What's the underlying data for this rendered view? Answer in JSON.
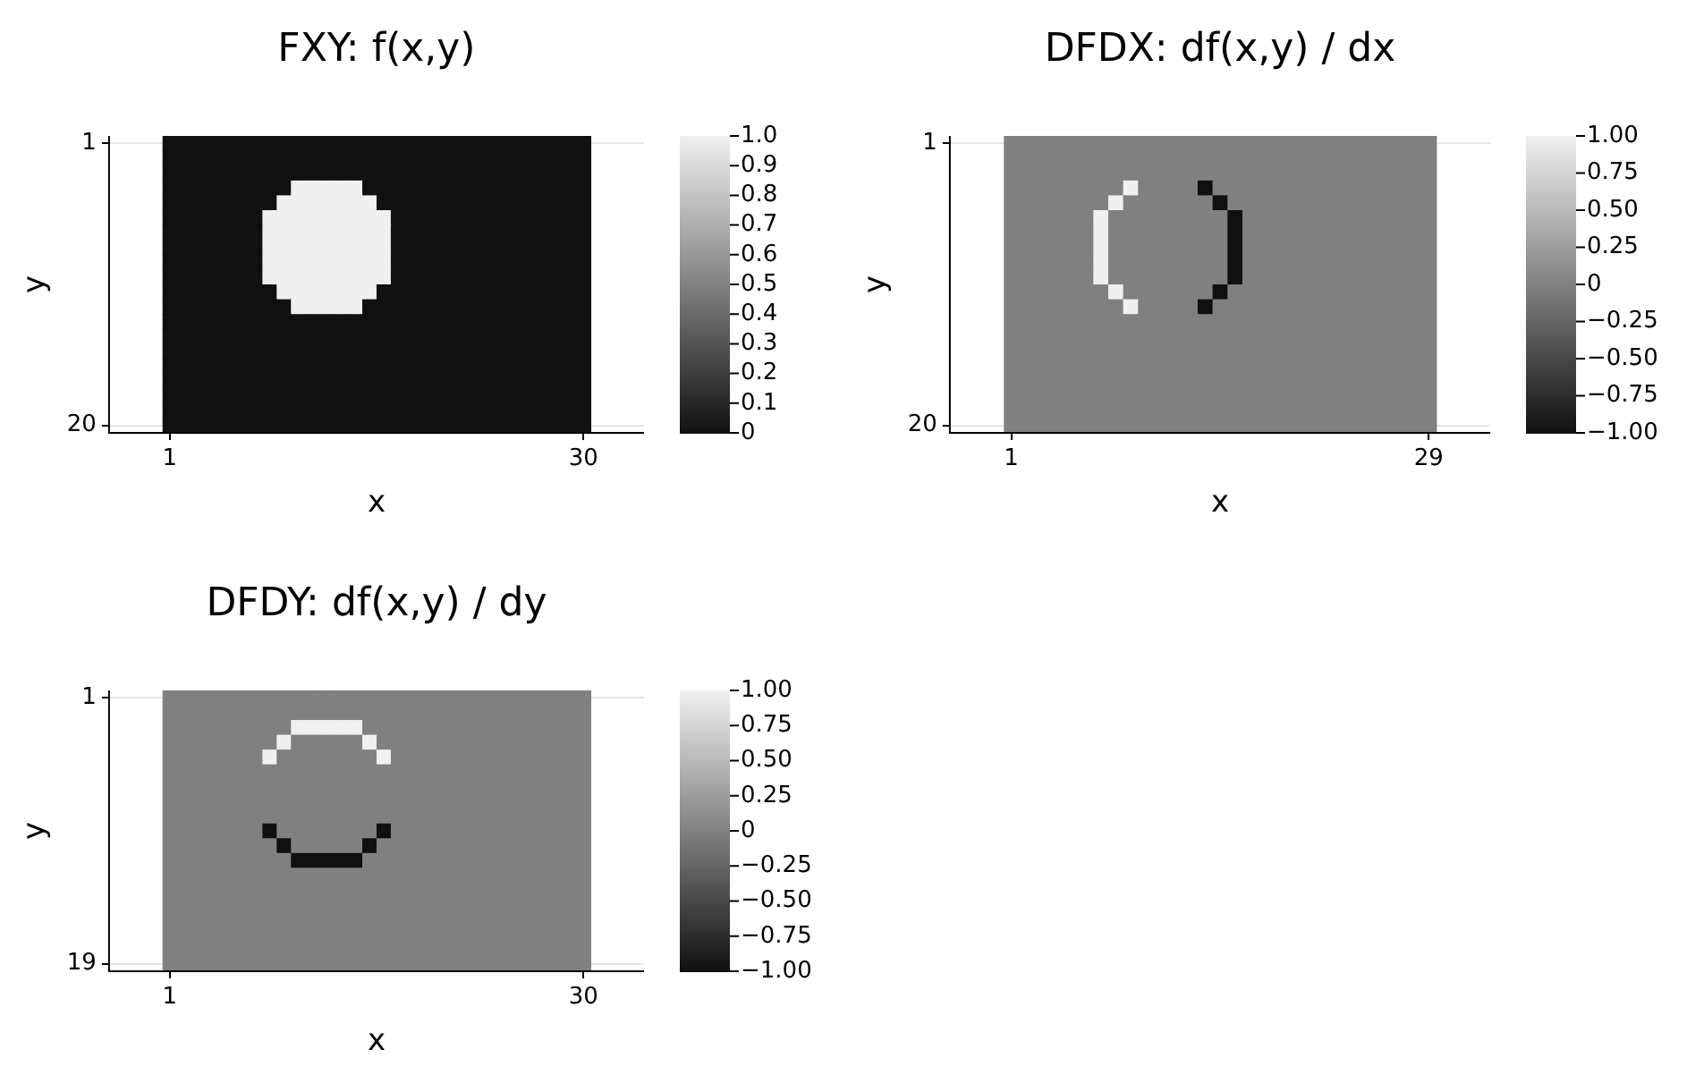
{
  "chart_data": [
    {
      "type": "heatmap",
      "title": "FXY: f(x,y)",
      "xlabel": "x",
      "ylabel": "y",
      "grid": true,
      "categories": [
        "1",
        null,
        null,
        null,
        null,
        null,
        null,
        null,
        null,
        null,
        null,
        null,
        null,
        null,
        null,
        null,
        null,
        null,
        null,
        null,
        null,
        null,
        null,
        null,
        null,
        null,
        null,
        null,
        null,
        "30"
      ],
      "y_categories": [
        "1",
        null,
        null,
        null,
        null,
        null,
        null,
        null,
        null,
        null,
        null,
        null,
        null,
        null,
        null,
        null,
        null,
        null,
        null,
        "20"
      ],
      "clim": [
        0,
        1
      ],
      "cticks": [
        0,
        0.1,
        0.2,
        0.3,
        0.4,
        0.5,
        0.6,
        0.7,
        0.8,
        0.9,
        {
          "value": 1,
          "label": "1.0"
        }
      ],
      "cells": [
        [
          0,
          0,
          0,
          0,
          0,
          0,
          0,
          0,
          0,
          0,
          0,
          0,
          0,
          0,
          0,
          0,
          0,
          0,
          0,
          0,
          0,
          0,
          0,
          0,
          0,
          0,
          0,
          0,
          0,
          0
        ],
        [
          0,
          0,
          0,
          0,
          0,
          0,
          0,
          0,
          0,
          0,
          0,
          0,
          0,
          0,
          0,
          0,
          0,
          0,
          0,
          0,
          0,
          0,
          0,
          0,
          0,
          0,
          0,
          0,
          0,
          0
        ],
        [
          0,
          0,
          0,
          0,
          0,
          0,
          0,
          0,
          0,
          0,
          0,
          0,
          0,
          0,
          0,
          0,
          0,
          0,
          0,
          0,
          0,
          0,
          0,
          0,
          0,
          0,
          0,
          0,
          0,
          0
        ],
        [
          0,
          0,
          0,
          0,
          0,
          0,
          0,
          0,
          0,
          1,
          1,
          1,
          1,
          1,
          0,
          0,
          0,
          0,
          0,
          0,
          0,
          0,
          0,
          0,
          0,
          0,
          0,
          0,
          0,
          0
        ],
        [
          0,
          0,
          0,
          0,
          0,
          0,
          0,
          0,
          1,
          1,
          1,
          1,
          1,
          1,
          1,
          0,
          0,
          0,
          0,
          0,
          0,
          0,
          0,
          0,
          0,
          0,
          0,
          0,
          0,
          0
        ],
        [
          0,
          0,
          0,
          0,
          0,
          0,
          0,
          1,
          1,
          1,
          1,
          1,
          1,
          1,
          1,
          1,
          0,
          0,
          0,
          0,
          0,
          0,
          0,
          0,
          0,
          0,
          0,
          0,
          0,
          0
        ],
        [
          0,
          0,
          0,
          0,
          0,
          0,
          0,
          1,
          1,
          1,
          1,
          1,
          1,
          1,
          1,
          1,
          0,
          0,
          0,
          0,
          0,
          0,
          0,
          0,
          0,
          0,
          0,
          0,
          0,
          0
        ],
        [
          0,
          0,
          0,
          0,
          0,
          0,
          0,
          1,
          1,
          1,
          1,
          1,
          1,
          1,
          1,
          1,
          0,
          0,
          0,
          0,
          0,
          0,
          0,
          0,
          0,
          0,
          0,
          0,
          0,
          0
        ],
        [
          0,
          0,
          0,
          0,
          0,
          0,
          0,
          1,
          1,
          1,
          1,
          1,
          1,
          1,
          1,
          1,
          0,
          0,
          0,
          0,
          0,
          0,
          0,
          0,
          0,
          0,
          0,
          0,
          0,
          0
        ],
        [
          0,
          0,
          0,
          0,
          0,
          0,
          0,
          1,
          1,
          1,
          1,
          1,
          1,
          1,
          1,
          1,
          0,
          0,
          0,
          0,
          0,
          0,
          0,
          0,
          0,
          0,
          0,
          0,
          0,
          0
        ],
        [
          0,
          0,
          0,
          0,
          0,
          0,
          0,
          0,
          1,
          1,
          1,
          1,
          1,
          1,
          1,
          0,
          0,
          0,
          0,
          0,
          0,
          0,
          0,
          0,
          0,
          0,
          0,
          0,
          0,
          0
        ],
        [
          0,
          0,
          0,
          0,
          0,
          0,
          0,
          0,
          0,
          1,
          1,
          1,
          1,
          1,
          0,
          0,
          0,
          0,
          0,
          0,
          0,
          0,
          0,
          0,
          0,
          0,
          0,
          0,
          0,
          0
        ],
        [
          0,
          0,
          0,
          0,
          0,
          0,
          0,
          0,
          0,
          0,
          0,
          0,
          0,
          0,
          0,
          0,
          0,
          0,
          0,
          0,
          0,
          0,
          0,
          0,
          0,
          0,
          0,
          0,
          0,
          0
        ],
        [
          0,
          0,
          0,
          0,
          0,
          0,
          0,
          0,
          0,
          0,
          0,
          0,
          0,
          0,
          0,
          0,
          0,
          0,
          0,
          0,
          0,
          0,
          0,
          0,
          0,
          0,
          0,
          0,
          0,
          0
        ],
        [
          0,
          0,
          0,
          0,
          0,
          0,
          0,
          0,
          0,
          0,
          0,
          0,
          0,
          0,
          0,
          0,
          0,
          0,
          0,
          0,
          0,
          0,
          0,
          0,
          0,
          0,
          0,
          0,
          0,
          0
        ],
        [
          0,
          0,
          0,
          0,
          0,
          0,
          0,
          0,
          0,
          0,
          0,
          0,
          0,
          0,
          0,
          0,
          0,
          0,
          0,
          0,
          0,
          0,
          0,
          0,
          0,
          0,
          0,
          0,
          0,
          0
        ],
        [
          0,
          0,
          0,
          0,
          0,
          0,
          0,
          0,
          0,
          0,
          0,
          0,
          0,
          0,
          0,
          0,
          0,
          0,
          0,
          0,
          0,
          0,
          0,
          0,
          0,
          0,
          0,
          0,
          0,
          0
        ],
        [
          0,
          0,
          0,
          0,
          0,
          0,
          0,
          0,
          0,
          0,
          0,
          0,
          0,
          0,
          0,
          0,
          0,
          0,
          0,
          0,
          0,
          0,
          0,
          0,
          0,
          0,
          0,
          0,
          0,
          0
        ],
        [
          0,
          0,
          0,
          0,
          0,
          0,
          0,
          0,
          0,
          0,
          0,
          0,
          0,
          0,
          0,
          0,
          0,
          0,
          0,
          0,
          0,
          0,
          0,
          0,
          0,
          0,
          0,
          0,
          0,
          0
        ],
        [
          0,
          0,
          0,
          0,
          0,
          0,
          0,
          0,
          0,
          0,
          0,
          0,
          0,
          0,
          0,
          0,
          0,
          0,
          0,
          0,
          0,
          0,
          0,
          0,
          0,
          0,
          0,
          0,
          0,
          0
        ]
      ]
    },
    {
      "type": "heatmap",
      "title": "DFDX: df(x,y) / dx",
      "xlabel": "x",
      "ylabel": "y",
      "grid": true,
      "categories": [
        "1",
        null,
        null,
        null,
        null,
        null,
        null,
        null,
        null,
        null,
        null,
        null,
        null,
        null,
        null,
        null,
        null,
        null,
        null,
        null,
        null,
        null,
        null,
        null,
        null,
        null,
        null,
        null,
        "29"
      ],
      "y_categories": [
        "1",
        null,
        null,
        null,
        null,
        null,
        null,
        null,
        null,
        null,
        null,
        null,
        null,
        null,
        null,
        null,
        null,
        null,
        null,
        "20"
      ],
      "clim": [
        -1,
        1
      ],
      "cticks": [
        {
          "value": -1,
          "label": "−1.00"
        },
        {
          "value": -0.75,
          "label": "−0.75"
        },
        {
          "value": -0.5,
          "label": "−0.50"
        },
        {
          "value": -0.25,
          "label": "−0.25"
        },
        0,
        {
          "value": 0.25,
          "label": "0.25"
        },
        {
          "value": 0.5,
          "label": "0.50"
        },
        {
          "value": 0.75,
          "label": "0.75"
        },
        {
          "value": 1,
          "label": "1.00"
        }
      ],
      "cells": [
        [
          0,
          0,
          0,
          0,
          0,
          0,
          0,
          0,
          0,
          0,
          0,
          0,
          0,
          0,
          0,
          0,
          0,
          0,
          0,
          0,
          0,
          0,
          0,
          0,
          0,
          0,
          0,
          0,
          0
        ],
        [
          0,
          0,
          0,
          0,
          0,
          0,
          0,
          0,
          0,
          0,
          0,
          0,
          0,
          0,
          0,
          0,
          0,
          0,
          0,
          0,
          0,
          0,
          0,
          0,
          0,
          0,
          0,
          0,
          0
        ],
        [
          0,
          0,
          0,
          0,
          0,
          0,
          0,
          0,
          0,
          0,
          0,
          0,
          0,
          0,
          0,
          0,
          0,
          0,
          0,
          0,
          0,
          0,
          0,
          0,
          0,
          0,
          0,
          0,
          0
        ],
        [
          0,
          0,
          0,
          0,
          0,
          0,
          0,
          0,
          1,
          0,
          0,
          0,
          0,
          -1,
          0,
          0,
          0,
          0,
          0,
          0,
          0,
          0,
          0,
          0,
          0,
          0,
          0,
          0,
          0
        ],
        [
          0,
          0,
          0,
          0,
          0,
          0,
          0,
          1,
          0,
          0,
          0,
          0,
          0,
          0,
          -1,
          0,
          0,
          0,
          0,
          0,
          0,
          0,
          0,
          0,
          0,
          0,
          0,
          0,
          0
        ],
        [
          0,
          0,
          0,
          0,
          0,
          0,
          1,
          0,
          0,
          0,
          0,
          0,
          0,
          0,
          0,
          -1,
          0,
          0,
          0,
          0,
          0,
          0,
          0,
          0,
          0,
          0,
          0,
          0,
          0
        ],
        [
          0,
          0,
          0,
          0,
          0,
          0,
          1,
          0,
          0,
          0,
          0,
          0,
          0,
          0,
          0,
          -1,
          0,
          0,
          0,
          0,
          0,
          0,
          0,
          0,
          0,
          0,
          0,
          0,
          0
        ],
        [
          0,
          0,
          0,
          0,
          0,
          0,
          1,
          0,
          0,
          0,
          0,
          0,
          0,
          0,
          0,
          -1,
          0,
          0,
          0,
          0,
          0,
          0,
          0,
          0,
          0,
          0,
          0,
          0,
          0
        ],
        [
          0,
          0,
          0,
          0,
          0,
          0,
          1,
          0,
          0,
          0,
          0,
          0,
          0,
          0,
          0,
          -1,
          0,
          0,
          0,
          0,
          0,
          0,
          0,
          0,
          0,
          0,
          0,
          0,
          0
        ],
        [
          0,
          0,
          0,
          0,
          0,
          0,
          1,
          0,
          0,
          0,
          0,
          0,
          0,
          0,
          0,
          -1,
          0,
          0,
          0,
          0,
          0,
          0,
          0,
          0,
          0,
          0,
          0,
          0,
          0
        ],
        [
          0,
          0,
          0,
          0,
          0,
          0,
          0,
          1,
          0,
          0,
          0,
          0,
          0,
          0,
          -1,
          0,
          0,
          0,
          0,
          0,
          0,
          0,
          0,
          0,
          0,
          0,
          0,
          0,
          0
        ],
        [
          0,
          0,
          0,
          0,
          0,
          0,
          0,
          0,
          1,
          0,
          0,
          0,
          0,
          -1,
          0,
          0,
          0,
          0,
          0,
          0,
          0,
          0,
          0,
          0,
          0,
          0,
          0,
          0,
          0
        ],
        [
          0,
          0,
          0,
          0,
          0,
          0,
          0,
          0,
          0,
          0,
          0,
          0,
          0,
          0,
          0,
          0,
          0,
          0,
          0,
          0,
          0,
          0,
          0,
          0,
          0,
          0,
          0,
          0,
          0
        ],
        [
          0,
          0,
          0,
          0,
          0,
          0,
          0,
          0,
          0,
          0,
          0,
          0,
          0,
          0,
          0,
          0,
          0,
          0,
          0,
          0,
          0,
          0,
          0,
          0,
          0,
          0,
          0,
          0,
          0
        ],
        [
          0,
          0,
          0,
          0,
          0,
          0,
          0,
          0,
          0,
          0,
          0,
          0,
          0,
          0,
          0,
          0,
          0,
          0,
          0,
          0,
          0,
          0,
          0,
          0,
          0,
          0,
          0,
          0,
          0
        ],
        [
          0,
          0,
          0,
          0,
          0,
          0,
          0,
          0,
          0,
          0,
          0,
          0,
          0,
          0,
          0,
          0,
          0,
          0,
          0,
          0,
          0,
          0,
          0,
          0,
          0,
          0,
          0,
          0,
          0
        ],
        [
          0,
          0,
          0,
          0,
          0,
          0,
          0,
          0,
          0,
          0,
          0,
          0,
          0,
          0,
          0,
          0,
          0,
          0,
          0,
          0,
          0,
          0,
          0,
          0,
          0,
          0,
          0,
          0,
          0
        ],
        [
          0,
          0,
          0,
          0,
          0,
          0,
          0,
          0,
          0,
          0,
          0,
          0,
          0,
          0,
          0,
          0,
          0,
          0,
          0,
          0,
          0,
          0,
          0,
          0,
          0,
          0,
          0,
          0,
          0
        ],
        [
          0,
          0,
          0,
          0,
          0,
          0,
          0,
          0,
          0,
          0,
          0,
          0,
          0,
          0,
          0,
          0,
          0,
          0,
          0,
          0,
          0,
          0,
          0,
          0,
          0,
          0,
          0,
          0,
          0
        ],
        [
          0,
          0,
          0,
          0,
          0,
          0,
          0,
          0,
          0,
          0,
          0,
          0,
          0,
          0,
          0,
          0,
          0,
          0,
          0,
          0,
          0,
          0,
          0,
          0,
          0,
          0,
          0,
          0,
          0
        ]
      ]
    },
    {
      "type": "heatmap",
      "title": "DFDY: df(x,y) / dy",
      "xlabel": "x",
      "ylabel": "y",
      "grid": true,
      "categories": [
        "1",
        null,
        null,
        null,
        null,
        null,
        null,
        null,
        null,
        null,
        null,
        null,
        null,
        null,
        null,
        null,
        null,
        null,
        null,
        null,
        null,
        null,
        null,
        null,
        null,
        null,
        null,
        null,
        null,
        "30"
      ],
      "y_categories": [
        "1",
        null,
        null,
        null,
        null,
        null,
        null,
        null,
        null,
        null,
        null,
        null,
        null,
        null,
        null,
        null,
        null,
        null,
        "19"
      ],
      "clim": [
        -1,
        1
      ],
      "cticks": [
        {
          "value": -1,
          "label": "−1.00"
        },
        {
          "value": -0.75,
          "label": "−0.75"
        },
        {
          "value": -0.5,
          "label": "−0.50"
        },
        {
          "value": -0.25,
          "label": "−0.25"
        },
        0,
        {
          "value": 0.25,
          "label": "0.25"
        },
        {
          "value": 0.5,
          "label": "0.50"
        },
        {
          "value": 0.75,
          "label": "0.75"
        },
        {
          "value": 1,
          "label": "1.00"
        }
      ],
      "cells": [
        [
          0,
          0,
          0,
          0,
          0,
          0,
          0,
          0,
          0,
          0,
          0,
          0,
          0,
          0,
          0,
          0,
          0,
          0,
          0,
          0,
          0,
          0,
          0,
          0,
          0,
          0,
          0,
          0,
          0,
          0
        ],
        [
          0,
          0,
          0,
          0,
          0,
          0,
          0,
          0,
          0,
          0,
          0,
          0,
          0,
          0,
          0,
          0,
          0,
          0,
          0,
          0,
          0,
          0,
          0,
          0,
          0,
          0,
          0,
          0,
          0,
          0
        ],
        [
          0,
          0,
          0,
          0,
          0,
          0,
          0,
          0,
          0,
          1,
          1,
          1,
          1,
          1,
          0,
          0,
          0,
          0,
          0,
          0,
          0,
          0,
          0,
          0,
          0,
          0,
          0,
          0,
          0,
          0
        ],
        [
          0,
          0,
          0,
          0,
          0,
          0,
          0,
          0,
          1,
          0,
          0,
          0,
          0,
          0,
          1,
          0,
          0,
          0,
          0,
          0,
          0,
          0,
          0,
          0,
          0,
          0,
          0,
          0,
          0,
          0
        ],
        [
          0,
          0,
          0,
          0,
          0,
          0,
          0,
          1,
          0,
          0,
          0,
          0,
          0,
          0,
          0,
          1,
          0,
          0,
          0,
          0,
          0,
          0,
          0,
          0,
          0,
          0,
          0,
          0,
          0,
          0
        ],
        [
          0,
          0,
          0,
          0,
          0,
          0,
          0,
          0,
          0,
          0,
          0,
          0,
          0,
          0,
          0,
          0,
          0,
          0,
          0,
          0,
          0,
          0,
          0,
          0,
          0,
          0,
          0,
          0,
          0,
          0
        ],
        [
          0,
          0,
          0,
          0,
          0,
          0,
          0,
          0,
          0,
          0,
          0,
          0,
          0,
          0,
          0,
          0,
          0,
          0,
          0,
          0,
          0,
          0,
          0,
          0,
          0,
          0,
          0,
          0,
          0,
          0
        ],
        [
          0,
          0,
          0,
          0,
          0,
          0,
          0,
          0,
          0,
          0,
          0,
          0,
          0,
          0,
          0,
          0,
          0,
          0,
          0,
          0,
          0,
          0,
          0,
          0,
          0,
          0,
          0,
          0,
          0,
          0
        ],
        [
          0,
          0,
          0,
          0,
          0,
          0,
          0,
          0,
          0,
          0,
          0,
          0,
          0,
          0,
          0,
          0,
          0,
          0,
          0,
          0,
          0,
          0,
          0,
          0,
          0,
          0,
          0,
          0,
          0,
          0
        ],
        [
          0,
          0,
          0,
          0,
          0,
          0,
          0,
          -1,
          0,
          0,
          0,
          0,
          0,
          0,
          0,
          -1,
          0,
          0,
          0,
          0,
          0,
          0,
          0,
          0,
          0,
          0,
          0,
          0,
          0,
          0
        ],
        [
          0,
          0,
          0,
          0,
          0,
          0,
          0,
          0,
          -1,
          0,
          0,
          0,
          0,
          0,
          -1,
          0,
          0,
          0,
          0,
          0,
          0,
          0,
          0,
          0,
          0,
          0,
          0,
          0,
          0,
          0
        ],
        [
          0,
          0,
          0,
          0,
          0,
          0,
          0,
          0,
          0,
          -1,
          -1,
          -1,
          -1,
          -1,
          0,
          0,
          0,
          0,
          0,
          0,
          0,
          0,
          0,
          0,
          0,
          0,
          0,
          0,
          0,
          0
        ],
        [
          0,
          0,
          0,
          0,
          0,
          0,
          0,
          0,
          0,
          0,
          0,
          0,
          0,
          0,
          0,
          0,
          0,
          0,
          0,
          0,
          0,
          0,
          0,
          0,
          0,
          0,
          0,
          0,
          0,
          0
        ],
        [
          0,
          0,
          0,
          0,
          0,
          0,
          0,
          0,
          0,
          0,
          0,
          0,
          0,
          0,
          0,
          0,
          0,
          0,
          0,
          0,
          0,
          0,
          0,
          0,
          0,
          0,
          0,
          0,
          0,
          0
        ],
        [
          0,
          0,
          0,
          0,
          0,
          0,
          0,
          0,
          0,
          0,
          0,
          0,
          0,
          0,
          0,
          0,
          0,
          0,
          0,
          0,
          0,
          0,
          0,
          0,
          0,
          0,
          0,
          0,
          0,
          0
        ],
        [
          0,
          0,
          0,
          0,
          0,
          0,
          0,
          0,
          0,
          0,
          0,
          0,
          0,
          0,
          0,
          0,
          0,
          0,
          0,
          0,
          0,
          0,
          0,
          0,
          0,
          0,
          0,
          0,
          0,
          0
        ],
        [
          0,
          0,
          0,
          0,
          0,
          0,
          0,
          0,
          0,
          0,
          0,
          0,
          0,
          0,
          0,
          0,
          0,
          0,
          0,
          0,
          0,
          0,
          0,
          0,
          0,
          0,
          0,
          0,
          0,
          0
        ],
        [
          0,
          0,
          0,
          0,
          0,
          0,
          0,
          0,
          0,
          0,
          0,
          0,
          0,
          0,
          0,
          0,
          0,
          0,
          0,
          0,
          0,
          0,
          0,
          0,
          0,
          0,
          0,
          0,
          0,
          0
        ],
        [
          0,
          0,
          0,
          0,
          0,
          0,
          0,
          0,
          0,
          0,
          0,
          0,
          0,
          0,
          0,
          0,
          0,
          0,
          0,
          0,
          0,
          0,
          0,
          0,
          0,
          0,
          0,
          0,
          0,
          0
        ]
      ]
    }
  ]
}
